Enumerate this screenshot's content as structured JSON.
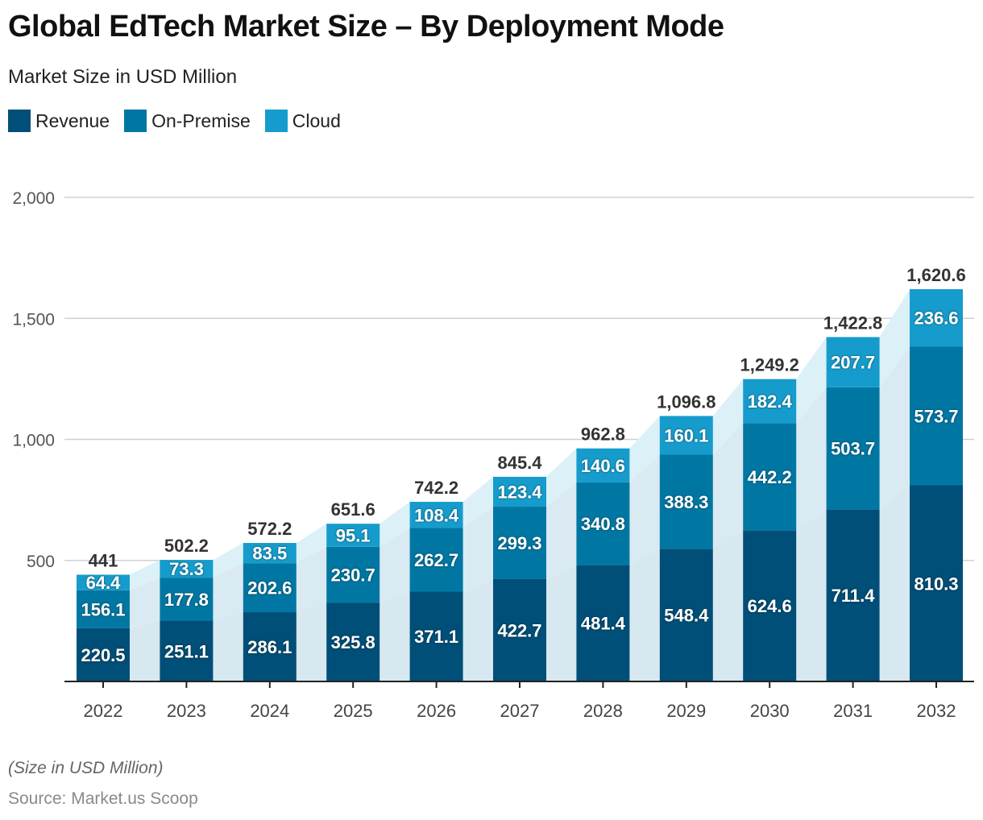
{
  "header": {
    "title": "Global EdTech Market Size – By Deployment Mode",
    "subtitle": "Market Size in USD Million"
  },
  "footer": {
    "note": "(Size in USD Million)",
    "source": "Source: Market.us Scoop"
  },
  "colors": {
    "Revenue": "#004f78",
    "On-Premise": "#0077a3",
    "Cloud": "#169ccc",
    "connector": "#d8e9f1",
    "connector_top": "#dff1f8",
    "grid": "#d0d0d0",
    "axis": "#222222",
    "total_label": "#333333",
    "tick_label": "#444444"
  },
  "chart_data": {
    "type": "bar",
    "stacked": true,
    "title": "Global EdTech Market Size – By Deployment Mode",
    "subtitle": "Market Size in USD Million",
    "xlabel": "",
    "ylabel": "",
    "categories": [
      "2022",
      "2023",
      "2024",
      "2025",
      "2026",
      "2027",
      "2028",
      "2029",
      "2030",
      "2031",
      "2032"
    ],
    "series": [
      {
        "name": "Revenue",
        "values": [
          220.5,
          251.1,
          286.1,
          325.8,
          371.1,
          422.7,
          481.4,
          548.4,
          624.6,
          711.4,
          810.3
        ],
        "labels": [
          "220.5",
          "251.1",
          "286.1",
          "325.8",
          "371.1",
          "422.7",
          "481.4",
          "548.4",
          "624.6",
          "711.4",
          "810.3"
        ]
      },
      {
        "name": "On-Premise",
        "values": [
          156.1,
          177.8,
          202.6,
          230.7,
          262.7,
          299.3,
          340.8,
          388.3,
          442.2,
          503.7,
          573.7
        ],
        "labels": [
          "156.1",
          "177.8",
          "202.6",
          "230.7",
          "262.7",
          "299.3",
          "340.8",
          "388.3",
          "442.2",
          "503.7",
          "573.7"
        ]
      },
      {
        "name": "Cloud",
        "values": [
          64.4,
          73.3,
          83.5,
          95.1,
          108.4,
          123.4,
          140.6,
          160.1,
          182.4,
          207.7,
          236.6
        ],
        "labels": [
          "64.4",
          "73.3",
          "83.5",
          "95.1",
          "108.4",
          "123.4",
          "140.6",
          "160.1",
          "182.4",
          "207.7",
          "236.6"
        ]
      }
    ],
    "totals": [
      441,
      502.2,
      572.2,
      651.6,
      742.2,
      845.4,
      962.8,
      1096.8,
      1249.2,
      1422.8,
      1620.6
    ],
    "total_labels": [
      "441",
      "502.2",
      "572.2",
      "651.6",
      "742.2",
      "845.4",
      "962.8",
      "1,096.8",
      "1,249.2",
      "1,422.8",
      "1,620.6"
    ],
    "ylim": [
      0,
      2000
    ],
    "yticks": [
      500,
      1000,
      1500,
      2000
    ],
    "ytick_labels": [
      "500",
      "1,000",
      "1,500",
      "2,000"
    ],
    "grid": true,
    "legend": {
      "position": "top-left",
      "entries": [
        "Revenue",
        "On-Premise",
        "Cloud"
      ]
    }
  }
}
